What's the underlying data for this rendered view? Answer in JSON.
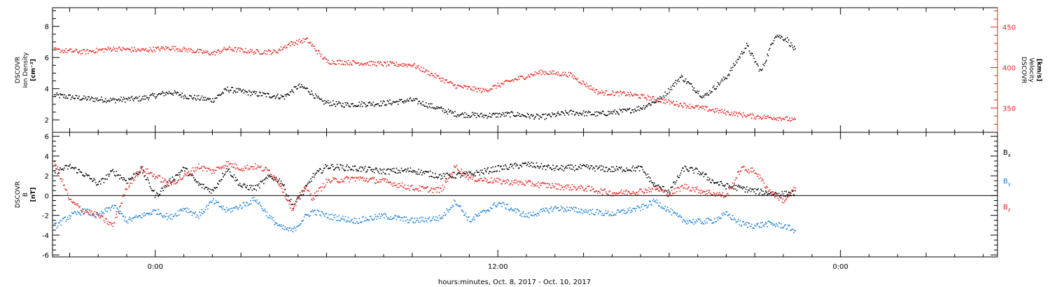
{
  "figure": {
    "xlabel": "hours:minutes, Oct.  8, 2017 - Oct. 10, 2017",
    "x_tick_labels": [
      "0:00",
      "12:00",
      "0:00"
    ]
  },
  "colors": {
    "black": "#000000",
    "red": "#e8231f",
    "blue": "#1a7fd6"
  },
  "chart_data": [
    {
      "type": "scatter",
      "x_unit": "hours relative to Oct 9 00:00",
      "xlim": [
        -3.6,
        29.5
      ],
      "data_end_x": 22.4,
      "left_axis": {
        "label": [
          "DSCOVR",
          "Ion Density",
          "[cm⁻³]"
        ],
        "ylim": [
          1.2,
          9.2
        ],
        "ticks": [
          2,
          4,
          6,
          8
        ]
      },
      "right_axis": {
        "label": [
          "DSCOVR",
          "Velocity",
          "[km/s]"
        ],
        "ylim": [
          320,
          474
        ],
        "ticks": [
          350,
          400,
          450
        ]
      },
      "series": [
        {
          "name": "Ion Density",
          "axis": "left",
          "color": "#000000",
          "x": [
            -3.5,
            -2.5,
            -1.5,
            -0.5,
            0.5,
            1.2,
            2.0,
            2.5,
            3.5,
            4.5,
            5.0,
            5.3,
            5.8,
            6.5,
            8.0,
            9.0,
            10.5,
            11.5,
            12.5,
            13.5,
            14.5,
            15.5,
            16.5,
            17.0,
            17.7,
            18.4,
            19.2,
            20.0,
            20.7,
            21.2,
            21.7,
            22.1,
            22.4
          ],
          "y": [
            3.6,
            3.4,
            3.3,
            3.4,
            3.8,
            3.5,
            3.3,
            4.0,
            3.7,
            3.5,
            4.2,
            4.0,
            3.2,
            3.0,
            3.1,
            3.3,
            2.4,
            2.3,
            2.4,
            2.2,
            2.5,
            2.4,
            2.6,
            2.8,
            3.4,
            4.8,
            3.5,
            4.8,
            6.8,
            5.1,
            7.5,
            7.2,
            6.5
          ]
        },
        {
          "name": "Velocity",
          "axis": "right",
          "color": "#e8231f",
          "x": [
            -3.5,
            -2.5,
            -1.5,
            -0.5,
            0.5,
            1.2,
            2.0,
            2.5,
            3.5,
            4.2,
            4.7,
            5.3,
            5.8,
            6.0,
            8.0,
            9.0,
            10.5,
            11.5,
            12.5,
            13.5,
            14.5,
            15.5,
            16.5,
            17.0,
            17.7,
            18.4,
            19.2,
            20.0,
            21.0,
            21.5,
            22.0,
            22.4
          ],
          "y": [
            422,
            420,
            424,
            422,
            425,
            422,
            418,
            424,
            420,
            420,
            430,
            435,
            415,
            408,
            405,
            404,
            378,
            372,
            385,
            395,
            392,
            370,
            368,
            365,
            360,
            355,
            350,
            345,
            340,
            339,
            338,
            335
          ]
        }
      ]
    },
    {
      "type": "scatter",
      "x_unit": "hours relative to Oct 9 00:00",
      "xlim": [
        -3.6,
        29.5
      ],
      "data_end_x": 22.4,
      "left_axis": {
        "label": [
          "DSCOVR",
          "B",
          "[nT]"
        ],
        "ylim": [
          -6.2,
          6.4
        ],
        "ticks": [
          -6,
          -4,
          -2,
          0,
          2,
          4,
          6
        ]
      },
      "zero_line": true,
      "legend": [
        {
          "text": "B",
          "sub": "x",
          "color": "#000000"
        },
        {
          "text": "B",
          "sub": "y",
          "color": "#1a7fd6"
        },
        {
          "text": "B",
          "sub": "z",
          "color": "#e8231f"
        }
      ],
      "series": [
        {
          "name": "Bx",
          "color": "#000000",
          "x": [
            -3.5,
            -3.0,
            -2.5,
            -2.0,
            -1.5,
            -1.0,
            -0.5,
            0.0,
            0.5,
            1.0,
            1.5,
            2.0,
            2.5,
            3.0,
            3.5,
            4.0,
            4.4,
            4.8,
            5.2,
            5.5,
            6.0,
            7.0,
            8.0,
            9.0,
            10.0,
            11.0,
            12.0,
            13.0,
            14.0,
            15.0,
            16.0,
            17.0,
            17.5,
            18.0,
            18.5,
            19.0,
            19.5,
            20.0,
            20.5,
            21.0,
            21.5,
            22.0,
            22.4
          ],
          "y": [
            2.5,
            3.0,
            2.2,
            1.2,
            2.5,
            1.5,
            2.7,
            0.0,
            1.5,
            2.8,
            1.2,
            0.5,
            2.8,
            1.0,
            0.8,
            2.0,
            1.5,
            -1.0,
            0.5,
            2.0,
            3.0,
            2.8,
            2.5,
            2.6,
            2.0,
            2.2,
            2.8,
            3.2,
            2.8,
            2.9,
            2.7,
            2.8,
            1.0,
            0.5,
            2.8,
            2.5,
            1.5,
            1.0,
            0.8,
            0.5,
            0.3,
            0.2,
            0.3
          ]
        },
        {
          "name": "By",
          "color": "#1a7fd6",
          "x": [
            -3.5,
            -3.0,
            -2.5,
            -2.0,
            -1.5,
            -1.0,
            -0.5,
            0.0,
            0.5,
            1.0,
            1.5,
            2.0,
            2.5,
            3.0,
            3.5,
            4.0,
            4.4,
            4.8,
            5.2,
            5.5,
            6.0,
            7.0,
            8.0,
            9.0,
            10.0,
            10.5,
            11.0,
            12.0,
            13.0,
            14.0,
            15.0,
            16.0,
            17.0,
            17.5,
            18.0,
            18.5,
            19.0,
            19.5,
            20.0,
            20.5,
            21.0,
            21.5,
            22.0,
            22.4
          ],
          "y": [
            -3.0,
            -2.0,
            -1.5,
            -2.0,
            -1.0,
            -2.5,
            -2.0,
            -1.5,
            -2.2,
            -1.2,
            -2.0,
            -0.5,
            -1.5,
            -1.0,
            -0.3,
            -2.2,
            -3.2,
            -3.5,
            -2.2,
            -1.5,
            -2.0,
            -2.5,
            -2.0,
            -2.5,
            -2.2,
            -0.5,
            -2.5,
            -0.7,
            -2.0,
            -1.2,
            -1.5,
            -1.8,
            -1.2,
            -0.5,
            -1.5,
            -2.5,
            -2.6,
            -2.5,
            -1.8,
            -2.8,
            -3.0,
            -2.8,
            -3.0,
            -3.5
          ]
        },
        {
          "name": "Bz",
          "color": "#e8231f",
          "x": [
            -3.5,
            -3.0,
            -2.5,
            -2.0,
            -1.5,
            -1.0,
            -0.5,
            0.0,
            0.5,
            1.0,
            1.5,
            2.0,
            2.5,
            3.0,
            3.5,
            4.0,
            4.4,
            4.8,
            5.2,
            5.5,
            6.0,
            7.0,
            8.0,
            9.0,
            10.0,
            10.5,
            11.0,
            12.0,
            13.0,
            14.0,
            15.0,
            16.0,
            17.0,
            17.5,
            18.0,
            18.5,
            19.0,
            19.5,
            20.0,
            20.5,
            21.0,
            21.5,
            22.0,
            22.4
          ],
          "y": [
            3.2,
            -0.5,
            -1.5,
            -2.0,
            -3.0,
            1.0,
            2.8,
            2.0,
            1.2,
            2.0,
            3.0,
            2.5,
            3.3,
            2.8,
            3.0,
            2.5,
            1.0,
            -1.5,
            1.0,
            -0.2,
            1.5,
            1.8,
            1.5,
            0.8,
            0.6,
            3.0,
            1.8,
            1.5,
            1.3,
            1.0,
            0.8,
            0.3,
            0.5,
            0.8,
            0.2,
            1.0,
            0.6,
            0.3,
            0.0,
            2.8,
            2.5,
            0.5,
            -0.5,
            0.8
          ]
        }
      ]
    }
  ]
}
